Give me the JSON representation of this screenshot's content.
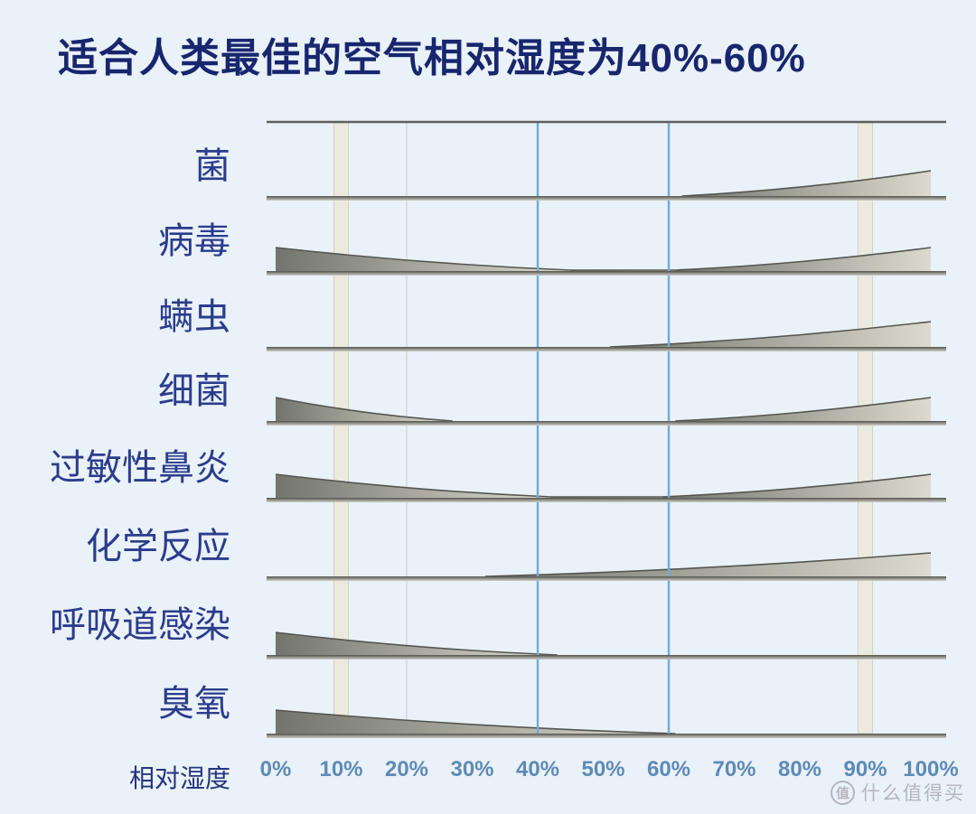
{
  "title": "适合人类最佳的空气相对湿度为40%-60%",
  "watermark": {
    "badge": "值",
    "text": "什么值得买"
  },
  "axis": {
    "label": "相对湿度",
    "ticks": [
      "0%",
      "10%",
      "20%",
      "30%",
      "40%",
      "50%",
      "60%",
      "70%",
      "80%",
      "90%",
      "100%"
    ]
  },
  "colors": {
    "background": "#e9f1f9",
    "title_text": "#18266e",
    "row_label_text": "#2b3c8c",
    "axis_tick_text": "#4f7fae",
    "optimal_line": "#6fabdc",
    "wedge_dark": "#73756d",
    "wedge_light": "#dcdacf",
    "wedge_edge": "#54554e",
    "baseline_dark": "#52524d",
    "baseline_mid": "#8d8d87",
    "baseline_light": "#cfcfc8",
    "top_border": "#5f5f5a",
    "pillar_fill": "#eceadf",
    "pillar_edge": "#d5d2c3",
    "faint_gridline": "#dadad4",
    "watermark_text": "#b6b6bb"
  },
  "chart_data": {
    "type": "area",
    "title": "适合人类最佳的空气相对湿度为40%-60%",
    "xlabel": "相对湿度",
    "x_range_percent": [
      0,
      100
    ],
    "x_ticks_percent": [
      0,
      10,
      20,
      30,
      40,
      50,
      60,
      70,
      80,
      90,
      100
    ],
    "optimal_range_percent": [
      40,
      60
    ],
    "reference_bands_percent": [
      10,
      90
    ],
    "faint_gridlines_percent": [
      20
    ],
    "note": "Each row shows relative intensity/risk versus relative humidity; wedge height is qualitative (px), zero height = negligible.",
    "rows": [
      {
        "label": "菌",
        "segments": [
          {
            "from": 62,
            "to": 100,
            "h_from": 0,
            "h_to": 28,
            "curve": true
          }
        ]
      },
      {
        "label": "病毒",
        "segments": [
          {
            "from": 0,
            "to": 45,
            "h_from": 26,
            "h_to": 1,
            "curve": true
          },
          {
            "from": 45,
            "to": 61,
            "h_from": 1,
            "h_to": 1
          },
          {
            "from": 61,
            "to": 100,
            "h_from": 1,
            "h_to": 26,
            "curve": true
          }
        ]
      },
      {
        "label": "螨虫",
        "segments": [
          {
            "from": 51,
            "to": 100,
            "h_from": 0,
            "h_to": 28,
            "curve": true
          }
        ]
      },
      {
        "label": "细菌",
        "segments": [
          {
            "from": 0,
            "to": 27,
            "h_from": 26,
            "h_to": 0,
            "curve": true
          },
          {
            "from": 61,
            "to": 100,
            "h_from": 0,
            "h_to": 26,
            "curve": true
          }
        ]
      },
      {
        "label": "过敏性鼻炎",
        "segments": [
          {
            "from": 0,
            "to": 42,
            "h_from": 26,
            "h_to": 1,
            "curve": true
          },
          {
            "from": 42,
            "to": 59,
            "h_from": 1,
            "h_to": 1
          },
          {
            "from": 59,
            "to": 100,
            "h_from": 1,
            "h_to": 26,
            "curve": true
          }
        ]
      },
      {
        "label": "化学反应",
        "segments": [
          {
            "from": 32,
            "to": 100,
            "h_from": 0,
            "h_to": 26,
            "curve": true
          }
        ]
      },
      {
        "label": "呼吸道感染",
        "segments": [
          {
            "from": 0,
            "to": 43,
            "h_from": 25,
            "h_to": 0,
            "curve": true
          }
        ]
      },
      {
        "label": "臭氧",
        "segments": [
          {
            "from": 0,
            "to": 61,
            "h_from": 26,
            "h_to": 0,
            "curve": true
          }
        ]
      }
    ]
  }
}
